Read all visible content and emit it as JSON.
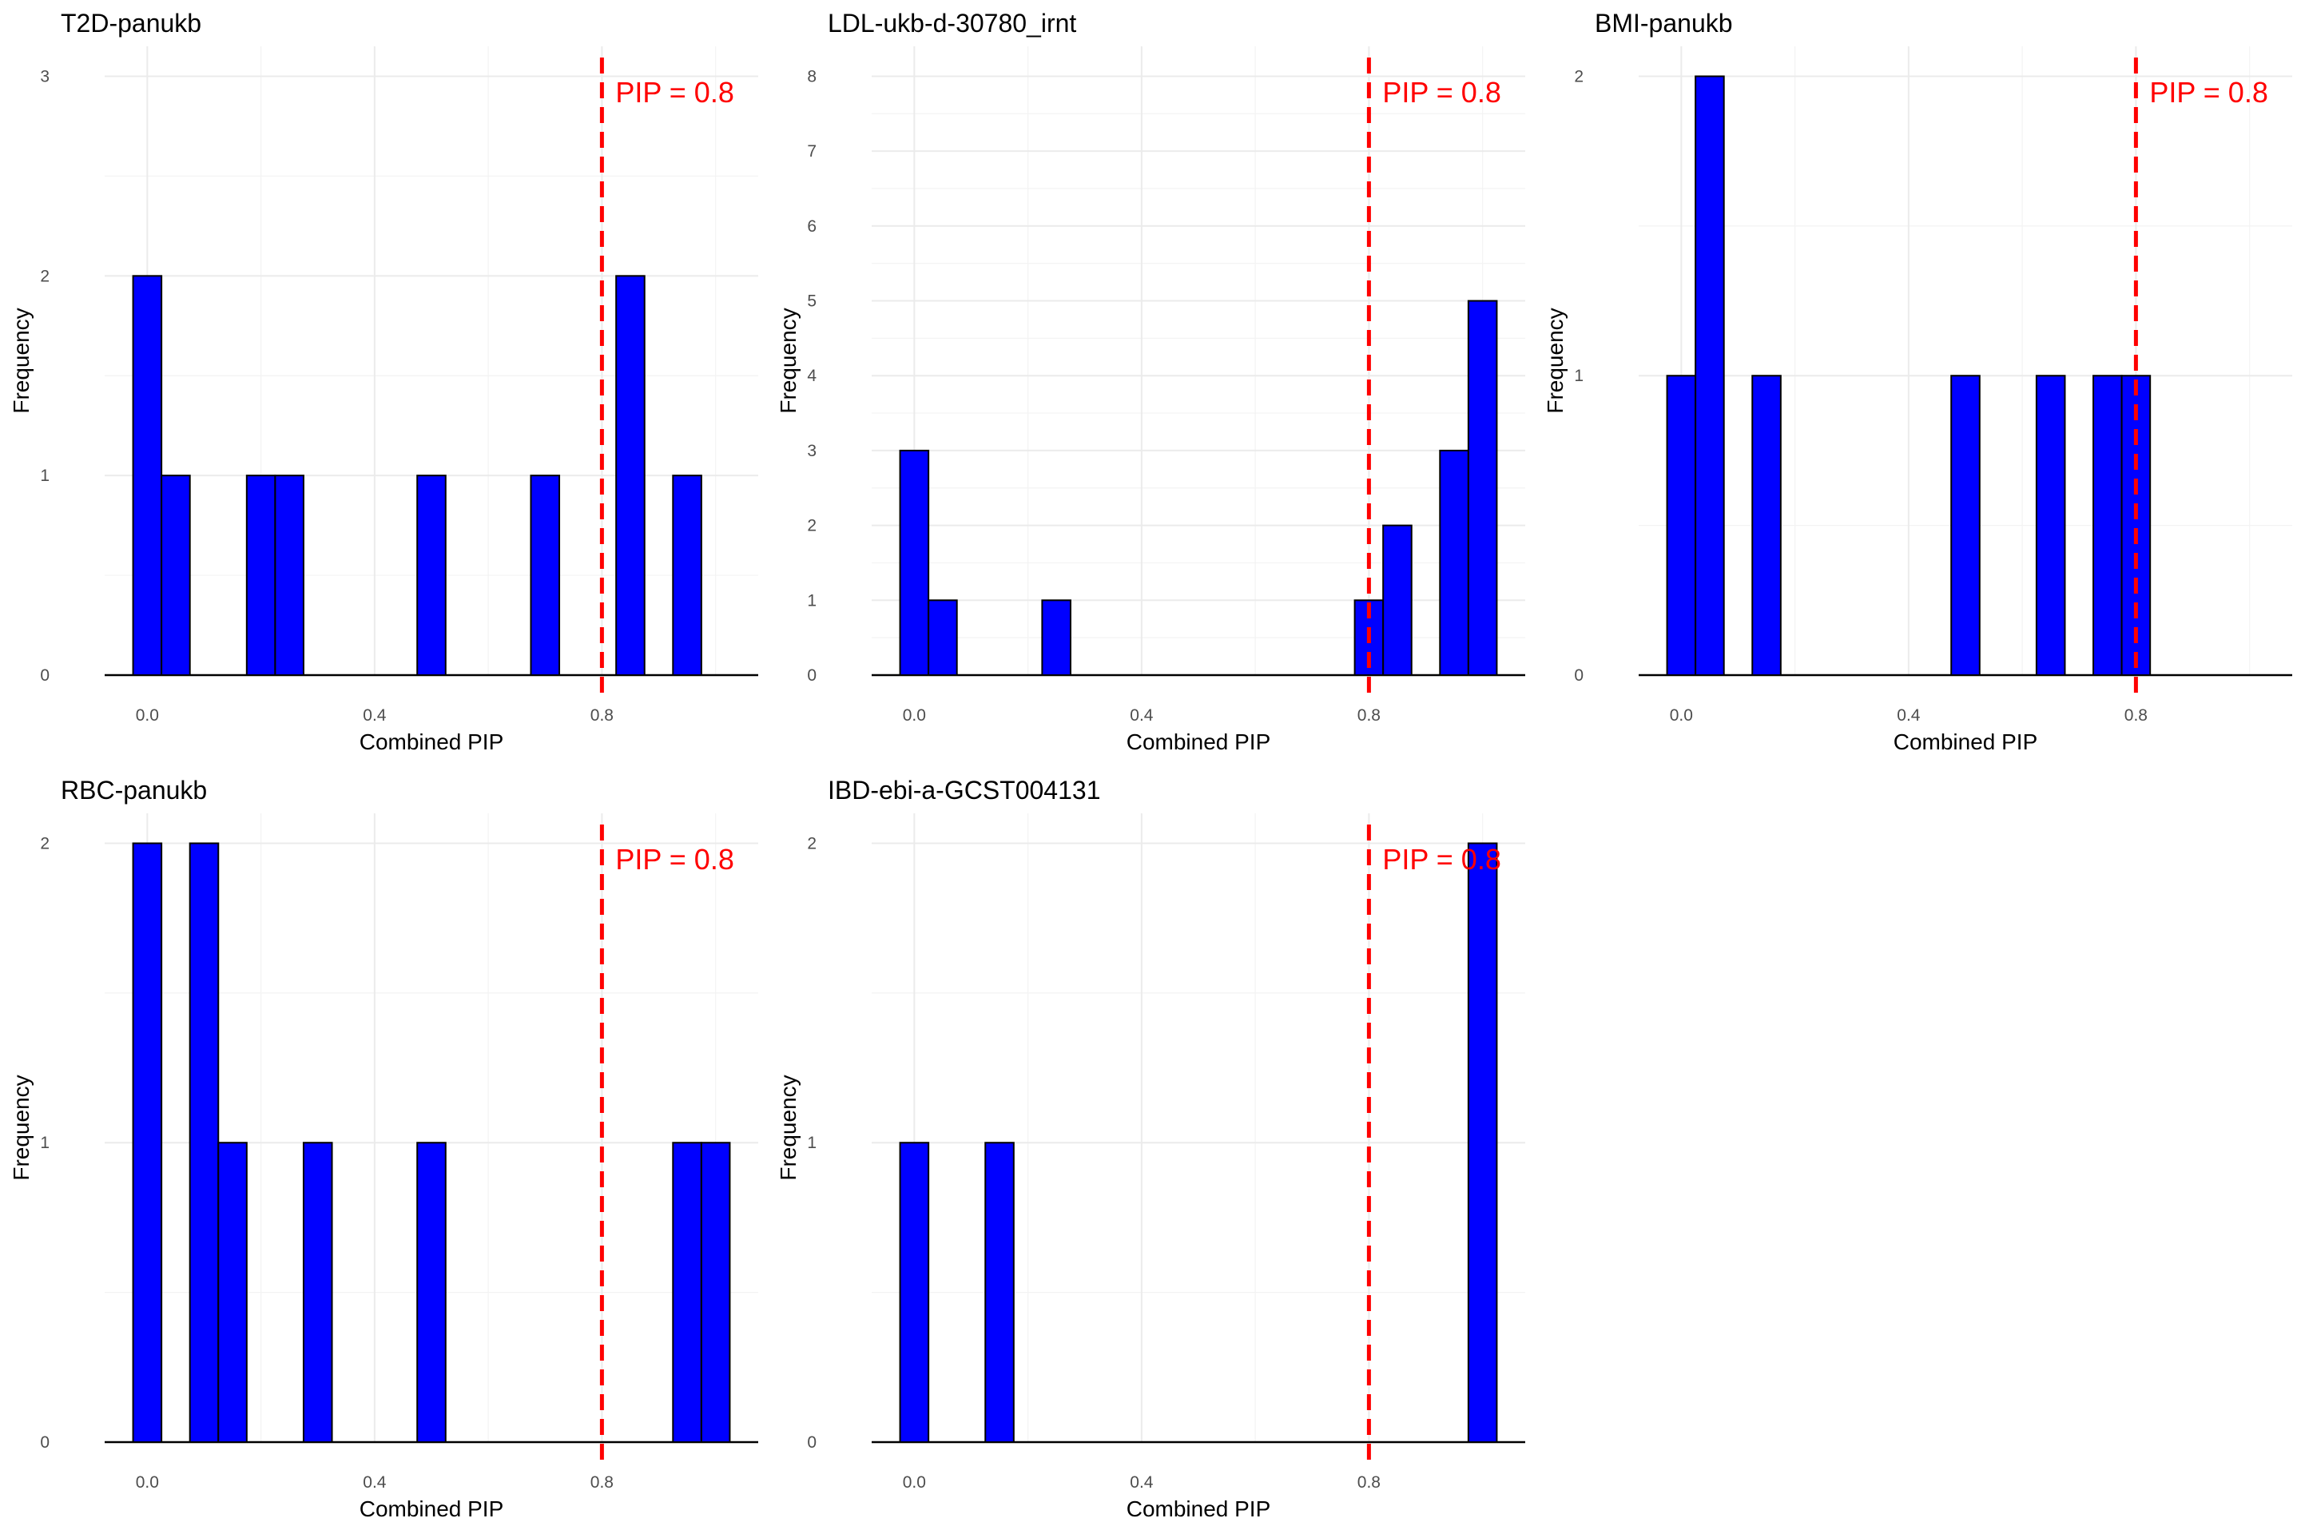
{
  "page": {
    "description_free": true
  },
  "colors": {
    "bar_fill": "#0000ff",
    "bar_stroke": "#000000",
    "threshold_line": "#ff0000",
    "grid_major": "#ebebeb",
    "grid_minor": "#f3f3f3",
    "baseline": "#000000"
  },
  "chart_data": [
    {
      "type": "bar",
      "title": "T2D-panukb",
      "xlabel": "Combined PIP",
      "ylabel": "Frequency",
      "bin_width": 0.05,
      "xlim": [
        -0.075,
        1.075
      ],
      "ylim": [
        0,
        3.15
      ],
      "xticks": [
        "0.0",
        "0.4",
        "0.8"
      ],
      "xtick_values": [
        0.0,
        0.4,
        0.8
      ],
      "yticks": [
        "0",
        "1",
        "2",
        "3"
      ],
      "ytick_values": [
        0,
        1,
        2,
        3
      ],
      "bin_centers": [
        0.0,
        0.05,
        0.2,
        0.25,
        0.5,
        0.7,
        0.85,
        0.95
      ],
      "values": [
        2,
        1,
        1,
        1,
        1,
        1,
        2,
        1
      ],
      "threshold": 0.8,
      "threshold_label": "PIP = 0.8"
    },
    {
      "type": "bar",
      "title": "LDL-ukb-d-30780_irnt",
      "xlabel": "Combined PIP",
      "ylabel": "Frequency",
      "bin_width": 0.05,
      "xlim": [
        -0.075,
        1.075
      ],
      "ylim": [
        0,
        8.4
      ],
      "xticks": [
        "0.0",
        "0.4",
        "0.8"
      ],
      "xtick_values": [
        0.0,
        0.4,
        0.8
      ],
      "yticks": [
        "0",
        "1",
        "2",
        "3",
        "4",
        "5",
        "6",
        "7",
        "8"
      ],
      "ytick_values": [
        0,
        1,
        2,
        3,
        4,
        5,
        6,
        7,
        8
      ],
      "bin_centers": [
        0.0,
        0.05,
        0.25,
        0.8,
        0.85,
        0.95,
        1.0
      ],
      "values": [
        3,
        1,
        1,
        1,
        2,
        3,
        5
      ],
      "threshold": 0.8,
      "threshold_label": "PIP = 0.8"
    },
    {
      "type": "bar",
      "title": "BMI-panukb",
      "xlabel": "Combined PIP",
      "ylabel": "Frequency",
      "bin_width": 0.05,
      "xlim": [
        -0.075,
        1.075
      ],
      "ylim": [
        0,
        2.1
      ],
      "xticks": [
        "0.0",
        "0.4",
        "0.8"
      ],
      "xtick_values": [
        0.0,
        0.4,
        0.8
      ],
      "yticks": [
        "0",
        "1",
        "2"
      ],
      "ytick_values": [
        0,
        1,
        2
      ],
      "bin_centers": [
        0.0,
        0.05,
        0.15,
        0.5,
        0.65,
        0.75,
        0.8
      ],
      "values": [
        1,
        2,
        1,
        1,
        1,
        1,
        1
      ],
      "threshold": 0.8,
      "threshold_label": "PIP = 0.8"
    },
    {
      "type": "bar",
      "title": "RBC-panukb",
      "xlabel": "Combined PIP",
      "ylabel": "Frequency",
      "bin_width": 0.05,
      "xlim": [
        -0.075,
        1.075
      ],
      "ylim": [
        0,
        2.1
      ],
      "xticks": [
        "0.0",
        "0.4",
        "0.8"
      ],
      "xtick_values": [
        0.0,
        0.4,
        0.8
      ],
      "yticks": [
        "0",
        "1",
        "2"
      ],
      "ytick_values": [
        0,
        1,
        2
      ],
      "bin_centers": [
        0.0,
        0.1,
        0.15,
        0.3,
        0.5,
        0.95,
        1.0
      ],
      "values": [
        2,
        2,
        1,
        1,
        1,
        1,
        1
      ],
      "threshold": 0.8,
      "threshold_label": "PIP = 0.8"
    },
    {
      "type": "bar",
      "title": "IBD-ebi-a-GCST004131",
      "xlabel": "Combined PIP",
      "ylabel": "Frequency",
      "bin_width": 0.05,
      "xlim": [
        -0.075,
        1.075
      ],
      "ylim": [
        0,
        2.1
      ],
      "xticks": [
        "0.0",
        "0.4",
        "0.8"
      ],
      "xtick_values": [
        0.0,
        0.4,
        0.8
      ],
      "yticks": [
        "0",
        "1",
        "2"
      ],
      "ytick_values": [
        0,
        1,
        2
      ],
      "bin_centers": [
        0.0,
        0.15,
        1.0
      ],
      "values": [
        1,
        1,
        2
      ],
      "threshold": 0.8,
      "threshold_label": "PIP = 0.8"
    }
  ]
}
